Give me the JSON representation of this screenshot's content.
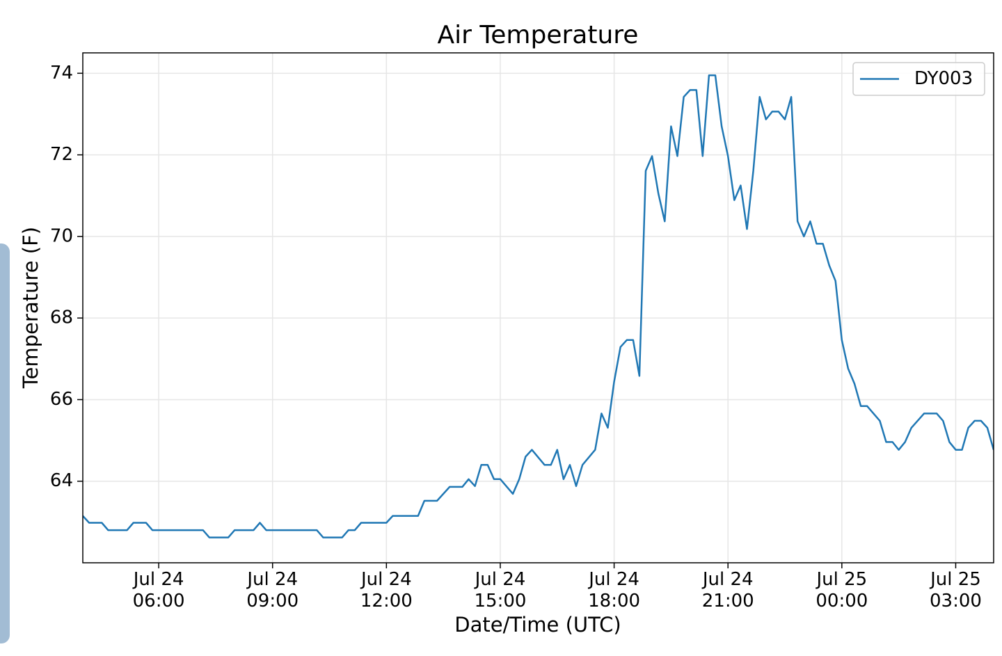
{
  "chart_data": {
    "type": "line",
    "title": "Air Temperature",
    "x_label": "Date/Time (UTC)",
    "y_label": "Temperature (F)",
    "xlim": [
      "Jul 24 04:00",
      "Jul 25 04:00"
    ],
    "xticks": [
      "Jul 24 06:00",
      "Jul 24 09:00",
      "Jul 24 12:00",
      "Jul 24 15:00",
      "Jul 24 18:00",
      "Jul 24 21:00",
      "Jul 25 00:00",
      "Jul 25 03:00"
    ],
    "ylim": [
      62.0,
      74.5
    ],
    "yticks": [
      64,
      66,
      68,
      70,
      72,
      74
    ],
    "grid": true,
    "legend": "upper right",
    "x": [
      "Jul 24 04:00",
      "Jul 24 04:10",
      "Jul 24 04:30",
      "Jul 24 04:40",
      "Jul 24 05:10",
      "Jul 24 05:20",
      "Jul 24 05:40",
      "Jul 24 05:50",
      "Jul 24 07:10",
      "Jul 24 07:20",
      "Jul 24 07:50",
      "Jul 24 08:00",
      "Jul 24 08:30",
      "Jul 24 08:40",
      "Jul 24 08:50",
      "Jul 24 10:10",
      "Jul 24 10:20",
      "Jul 24 10:50",
      "Jul 24 11:00",
      "Jul 24 11:10",
      "Jul 24 11:20",
      "Jul 24 12:00",
      "Jul 24 12:10",
      "Jul 24 12:50",
      "Jul 24 13:00",
      "Jul 24 13:20",
      "Jul 24 13:40",
      "Jul 24 14:00",
      "Jul 24 14:10",
      "Jul 24 14:20",
      "Jul 24 14:30",
      "Jul 24 14:40",
      "Jul 24 14:50",
      "Jul 24 15:00",
      "Jul 24 15:20",
      "Jul 24 15:30",
      "Jul 24 15:40",
      "Jul 24 15:50",
      "Jul 24 16:10",
      "Jul 24 16:20",
      "Jul 24 16:30",
      "Jul 24 16:40",
      "Jul 24 16:50",
      "Jul 24 17:00",
      "Jul 24 17:10",
      "Jul 24 17:30",
      "Jul 24 17:40",
      "Jul 24 17:50",
      "Jul 24 18:00",
      "Jul 24 18:10",
      "Jul 24 18:20",
      "Jul 24 18:30",
      "Jul 24 18:40",
      "Jul 24 18:50",
      "Jul 24 19:00",
      "Jul 24 19:10",
      "Jul 24 19:20",
      "Jul 24 19:30",
      "Jul 24 19:40",
      "Jul 24 19:50",
      "Jul 24 20:00",
      "Jul 24 20:10",
      "Jul 24 20:20",
      "Jul 24 20:30",
      "Jul 24 20:40",
      "Jul 24 20:50",
      "Jul 24 21:00",
      "Jul 24 21:10",
      "Jul 24 21:20",
      "Jul 24 21:30",
      "Jul 24 21:40",
      "Jul 24 21:50",
      "Jul 24 22:00",
      "Jul 24 22:10",
      "Jul 24 22:20",
      "Jul 24 22:30",
      "Jul 24 22:40",
      "Jul 24 22:50",
      "Jul 24 23:00",
      "Jul 24 23:10",
      "Jul 24 23:20",
      "Jul 24 23:30",
      "Jul 24 23:40",
      "Jul 24 23:50",
      "Jul 25 00:00",
      "Jul 25 00:10",
      "Jul 25 00:20",
      "Jul 25 00:30",
      "Jul 25 00:40",
      "Jul 25 01:00",
      "Jul 25 01:10",
      "Jul 25 01:20",
      "Jul 25 01:30",
      "Jul 25 01:40",
      "Jul 25 01:50",
      "Jul 25 02:10",
      "Jul 25 02:30",
      "Jul 25 02:40",
      "Jul 25 02:50",
      "Jul 25 03:00",
      "Jul 25 03:10",
      "Jul 25 03:20",
      "Jul 25 03:30",
      "Jul 25 03:40",
      "Jul 25 03:50",
      "Jul 25 04:00"
    ],
    "series": [
      {
        "name": "DY003",
        "color": "#1f77b4",
        "values": [
          63.15,
          62.98,
          62.98,
          62.8,
          62.8,
          62.98,
          62.98,
          62.8,
          62.8,
          62.62,
          62.62,
          62.8,
          62.8,
          62.98,
          62.8,
          62.8,
          62.62,
          62.62,
          62.8,
          62.8,
          62.98,
          62.98,
          63.15,
          63.15,
          63.52,
          63.52,
          63.86,
          63.86,
          64.05,
          63.88,
          64.4,
          64.4,
          64.05,
          64.05,
          63.69,
          64.05,
          64.6,
          64.77,
          64.4,
          64.4,
          64.77,
          64.05,
          64.4,
          63.88,
          64.4,
          64.77,
          65.66,
          65.31,
          66.44,
          67.29,
          67.46,
          67.46,
          66.58,
          71.61,
          71.97,
          71.05,
          70.37,
          72.7,
          71.97,
          73.42,
          73.59,
          73.59,
          71.97,
          73.95,
          73.95,
          72.7,
          71.97,
          70.89,
          71.25,
          70.18,
          71.61,
          73.42,
          72.87,
          73.06,
          73.06,
          72.87,
          73.42,
          70.37,
          70.0,
          70.37,
          69.82,
          69.82,
          69.29,
          68.91,
          67.46,
          66.76,
          66.39,
          65.84,
          65.84,
          65.48,
          64.96,
          64.96,
          64.77,
          64.96,
          65.31,
          65.66,
          65.66,
          65.48,
          64.96,
          64.77,
          64.77,
          65.31,
          65.48,
          65.48,
          65.31,
          64.77
        ]
      }
    ]
  }
}
